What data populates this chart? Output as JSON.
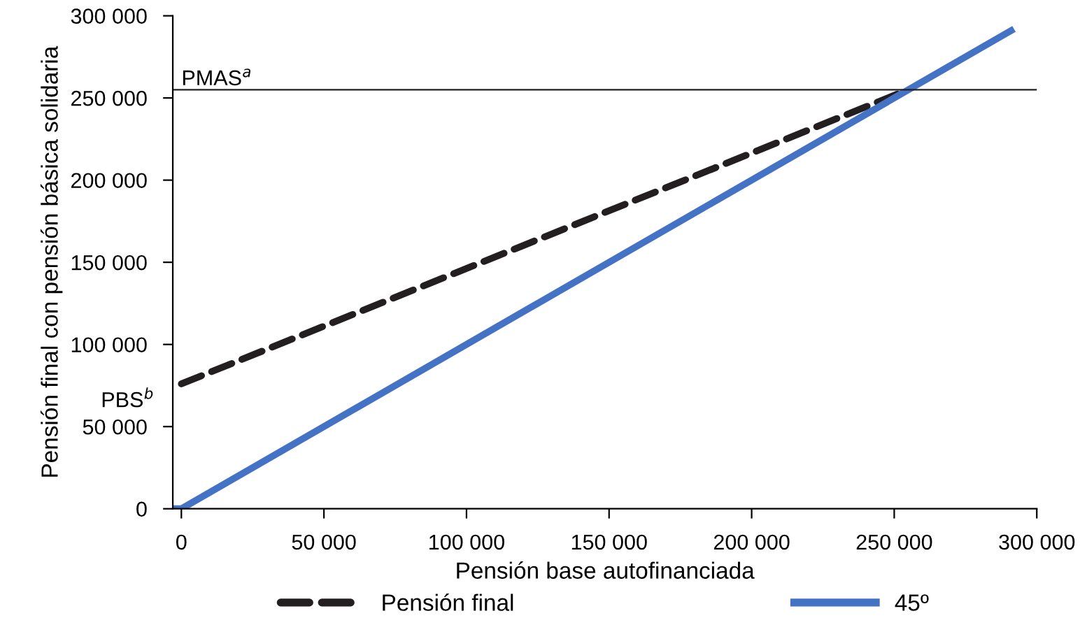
{
  "chart_data": {
    "type": "line",
    "xlabel": "Pensión base autofinanciada",
    "ylabel": "Pensión final con pensión básica solidaria",
    "xlim": [
      -3000,
      300000
    ],
    "ylim": [
      0,
      300000
    ],
    "xticks": [
      {
        "value": 0,
        "label": "0"
      },
      {
        "value": 50000,
        "label": "50 000"
      },
      {
        "value": 100000,
        "label": "100 000"
      },
      {
        "value": 150000,
        "label": "150 000"
      },
      {
        "value": 200000,
        "label": "200 000"
      },
      {
        "value": 250000,
        "label": "250 000"
      },
      {
        "value": 300000,
        "label": "300 000"
      }
    ],
    "yticks": [
      {
        "value": 0,
        "label": "0"
      },
      {
        "value": 50000,
        "label": "50 000"
      },
      {
        "value": 100000,
        "label": "100 000"
      },
      {
        "value": 150000,
        "label": "150 000"
      },
      {
        "value": 200000,
        "label": "200 000"
      },
      {
        "value": 250000,
        "label": "250 000"
      },
      {
        "value": 300000,
        "label": "300 000"
      }
    ],
    "series": [
      {
        "name": "Pensión final",
        "color": "#231f20",
        "line_style": "dashed",
        "x": [
          0,
          252000
        ],
        "values": [
          76000,
          253000
        ]
      },
      {
        "name": "45º",
        "color": "#4472c4",
        "line_style": "solid",
        "x": [
          -3000,
          0,
          292000
        ],
        "values": [
          0,
          0,
          292000
        ]
      }
    ],
    "ref_lines": [
      {
        "axis": "y",
        "value": 255000,
        "label": "PMAS$^{a}$",
        "color": "#231f20"
      }
    ],
    "annotations": [
      {
        "text": "PBS$^{b}$",
        "x": 0,
        "y": 76000
      }
    ],
    "grid": false,
    "legend": "bottom",
    "marker": "none"
  }
}
